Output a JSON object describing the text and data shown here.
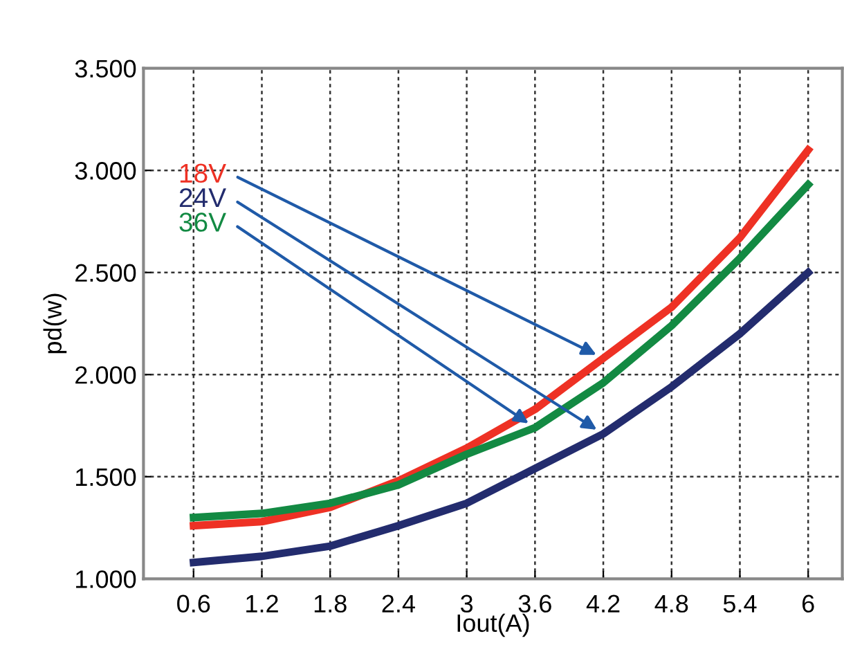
{
  "chart_data": {
    "type": "line",
    "xlabel": "Iout(A)",
    "ylabel": "pd(w)",
    "x": [
      0.6,
      1.2,
      1.8,
      2.4,
      3,
      3.6,
      4.2,
      4.8,
      5.4,
      6
    ],
    "series": [
      {
        "name": "18V",
        "color": "#ee3124",
        "values": [
          1.26,
          1.28,
          1.35,
          1.48,
          1.64,
          1.83,
          2.08,
          2.33,
          2.67,
          3.1
        ]
      },
      {
        "name": "24V",
        "color": "#232c6e",
        "values": [
          1.08,
          1.11,
          1.16,
          1.26,
          1.37,
          1.54,
          1.71,
          1.94,
          2.2,
          2.5
        ]
      },
      {
        "name": "36V",
        "color": "#138a43",
        "values": [
          1.3,
          1.32,
          1.37,
          1.46,
          1.61,
          1.74,
          1.96,
          2.24,
          2.57,
          2.93
        ]
      }
    ],
    "xlim": [
      0.16,
      6.3
    ],
    "ylim": [
      1,
      3.5
    ],
    "xticks": [
      0.6,
      1.2,
      1.8,
      2.4,
      3,
      3.6,
      4.2,
      4.8,
      5.4,
      6
    ],
    "yticks": [
      {
        "value": 1,
        "label": "1.000"
      },
      {
        "value": 1.5,
        "label": "1.500"
      },
      {
        "value": 2,
        "label": "2.000"
      },
      {
        "value": 2.5,
        "label": "2.500"
      },
      {
        "value": 3,
        "label": "3.000"
      },
      {
        "value": 3.5,
        "label": "3.500"
      }
    ],
    "grid": true,
    "marker": "none",
    "line_style": "solid"
  }
}
